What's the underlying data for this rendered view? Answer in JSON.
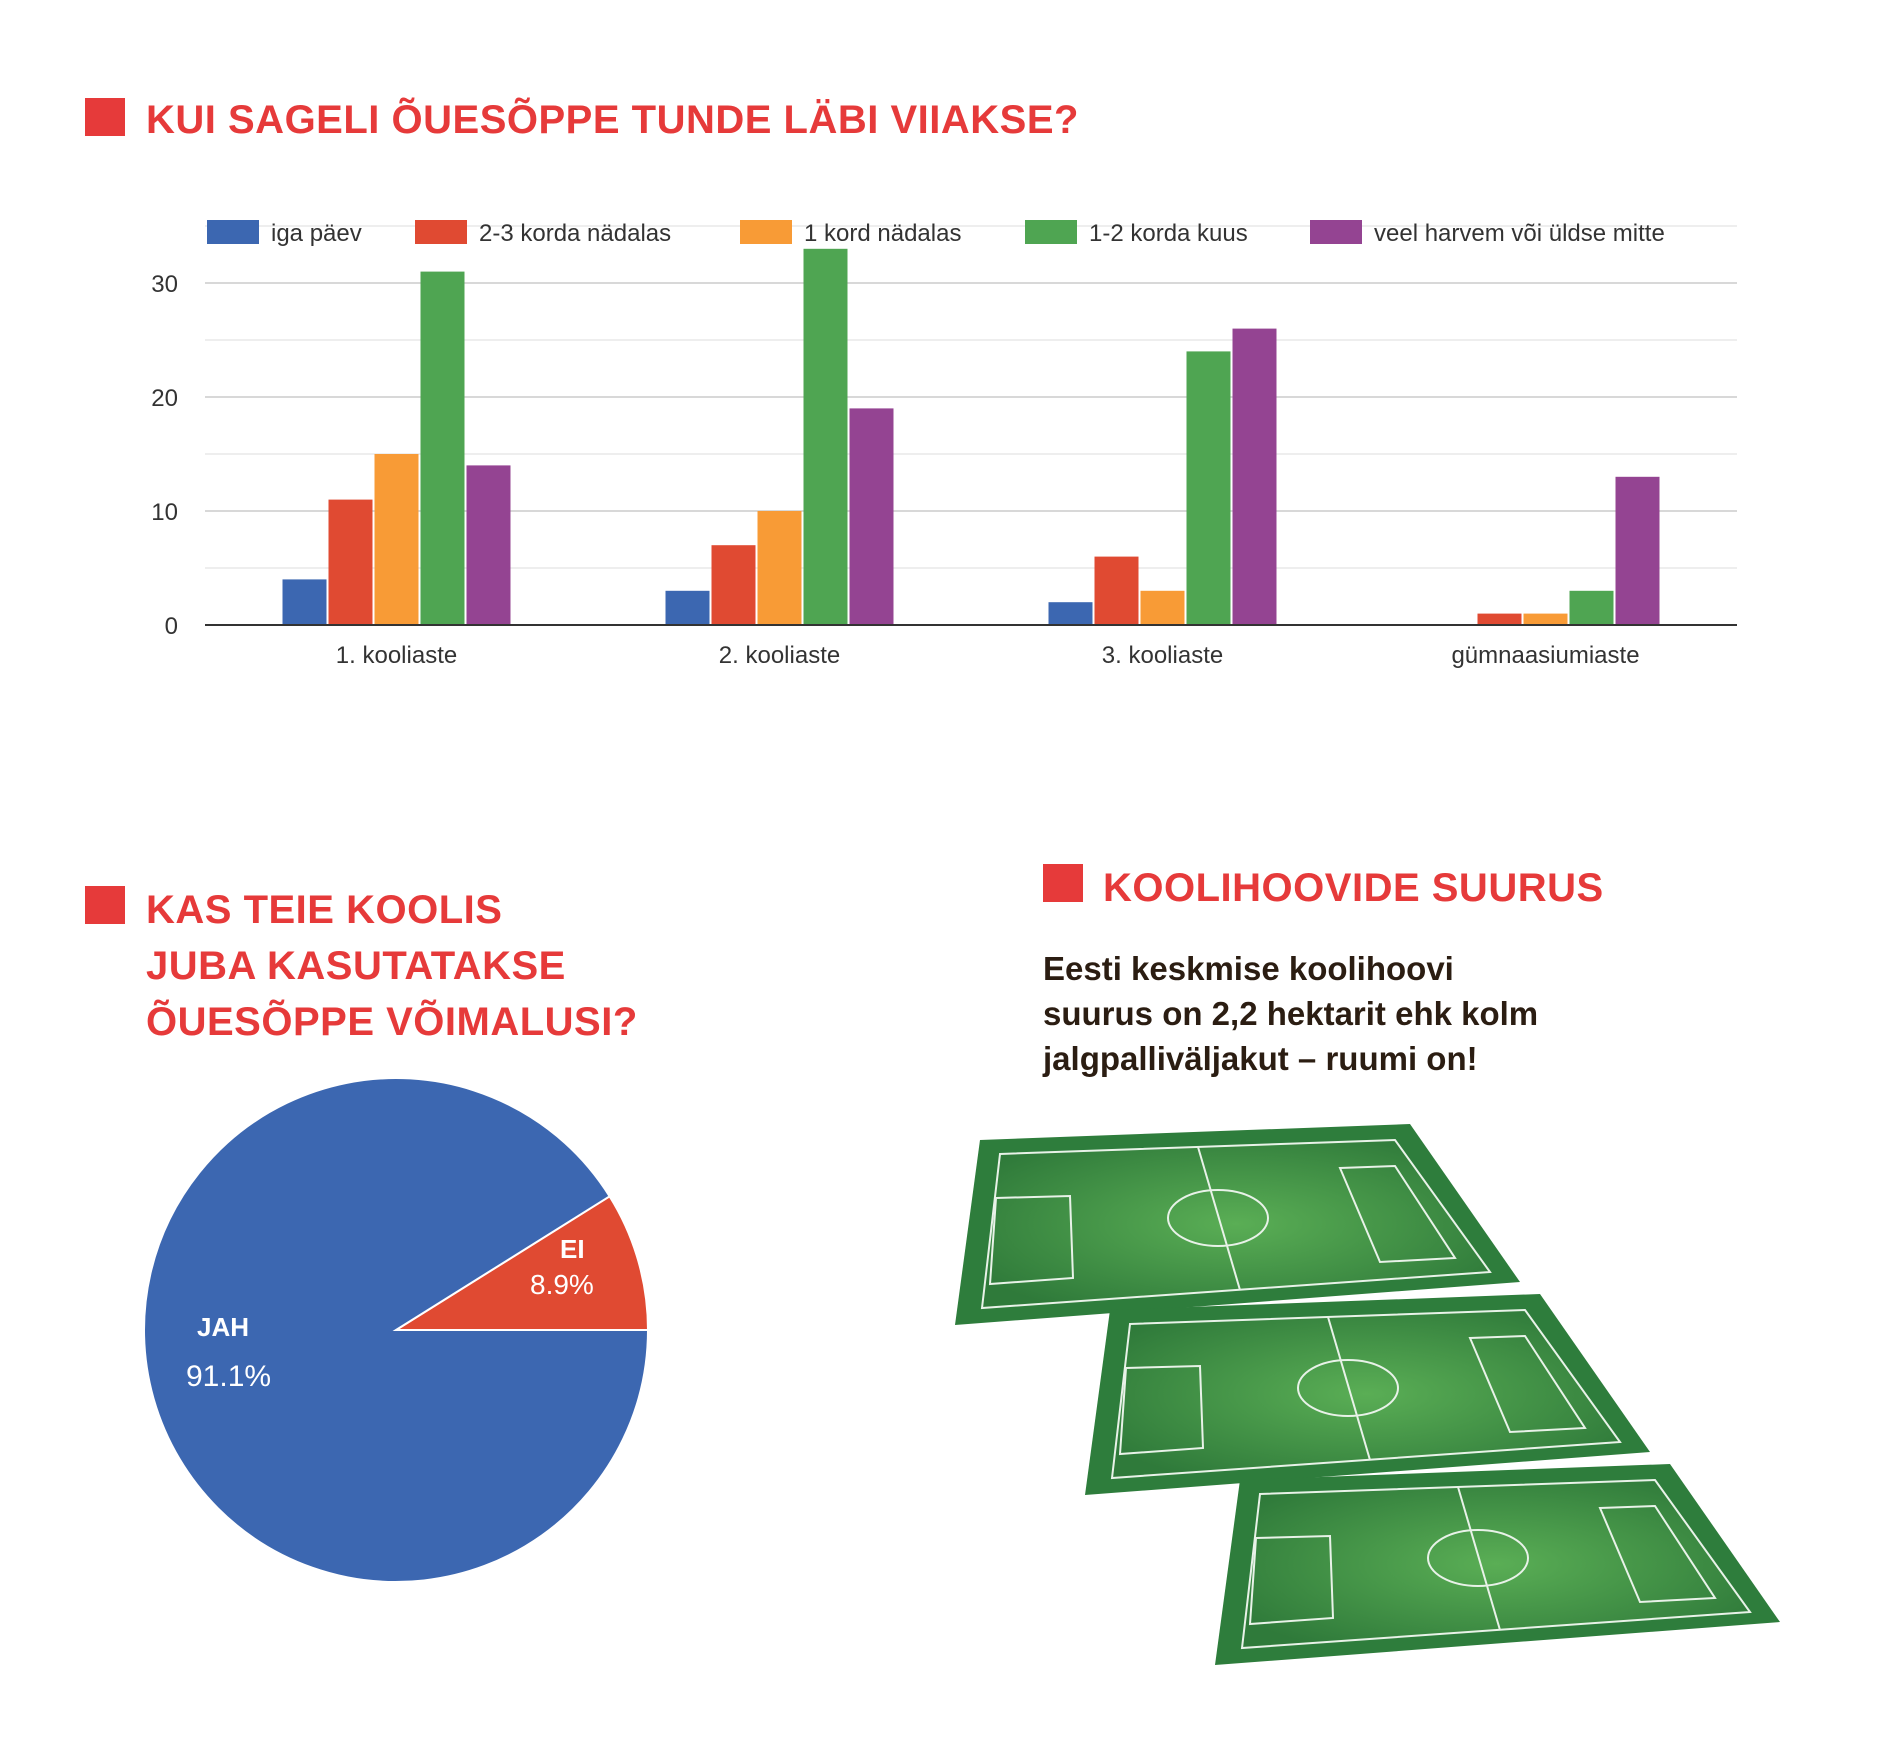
{
  "section1": {
    "title": "KUI SAGELI ÕUESÕPPE TUNDE LÄBI VIIAKSE?"
  },
  "section2": {
    "title_lines": [
      "KAS TEIE KOOLIS",
      "JUBA KASUTATAKSE",
      "ÕUESÕPPE VÕIMALUSI?"
    ]
  },
  "section3": {
    "title": "KOOLIHOOVIDE SUURUS",
    "text_lines": [
      "Eesti keskmise koolihoovi",
      "suurus on 2,2 hektarit ehk kolm",
      "jalgpalliväljakut – ruumi on!"
    ]
  },
  "chart_data": [
    {
      "type": "bar",
      "title": "KUI SAGELI ÕUESÕPPE TUNDE LÄBI VIIAKSE?",
      "categories": [
        "1. kooliaste",
        "2. kooliaste",
        "3. kooliaste",
        "gümnaasiumiaste"
      ],
      "series": [
        {
          "name": "iga päev",
          "color": "#3c67b1",
          "values": [
            4,
            3,
            2,
            0
          ]
        },
        {
          "name": "2-3 korda nädalas",
          "color": "#e04a32",
          "values": [
            11,
            7,
            6,
            1
          ]
        },
        {
          "name": "1 kord nädalas",
          "color": "#f89b36",
          "values": [
            15,
            10,
            3,
            1
          ]
        },
        {
          "name": "1-2 korda kuus",
          "color": "#4fa552",
          "values": [
            31,
            33,
            24,
            3
          ]
        },
        {
          "name": "veel harvem või üldse mitte",
          "color": "#944492",
          "values": [
            14,
            19,
            26,
            13
          ]
        }
      ],
      "ylim": [
        0,
        35
      ],
      "yticks": [
        0,
        10,
        20,
        30
      ],
      "grid": true,
      "legend": "top"
    },
    {
      "type": "pie",
      "title": "KAS TEIE KOOLIS JUBA KASUTATAKSE ÕUESÕPPE VÕIMALUSI?",
      "slices": [
        {
          "label": "JAH",
          "value": 91.1,
          "display": "91.1%",
          "color": "#3c67b1"
        },
        {
          "label": "EI",
          "value": 8.9,
          "display": "8.9%",
          "color": "#e04a32"
        }
      ]
    }
  ]
}
